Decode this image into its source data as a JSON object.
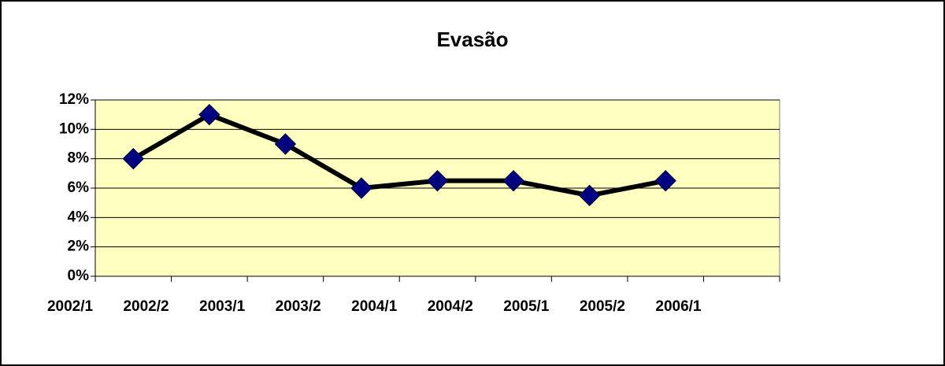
{
  "chart_data": {
    "type": "line",
    "title": "Evasão",
    "categories": [
      "2002/1",
      "2002/2",
      "2003/1",
      "2003/2",
      "2004/1",
      "2004/2",
      "2005/1",
      "2005/2",
      "2006/1"
    ],
    "series": [
      {
        "name": "Evasão",
        "color": "#000000",
        "marker_color": "#000080",
        "values": [
          8,
          11,
          9,
          6,
          6.5,
          6.5,
          5.5,
          6.5,
          null
        ]
      }
    ],
    "ylim": [
      0,
      12
    ],
    "yticks": [
      {
        "value": 0,
        "label": "0%"
      },
      {
        "value": 2,
        "label": "2%"
      },
      {
        "value": 4,
        "label": "4%"
      },
      {
        "value": 6,
        "label": "6%"
      },
      {
        "value": 8,
        "label": "8%"
      },
      {
        "value": 10,
        "label": "10%"
      },
      {
        "value": 12,
        "label": "12%"
      }
    ],
    "grid": true,
    "plot_background": "#ffffc0"
  }
}
